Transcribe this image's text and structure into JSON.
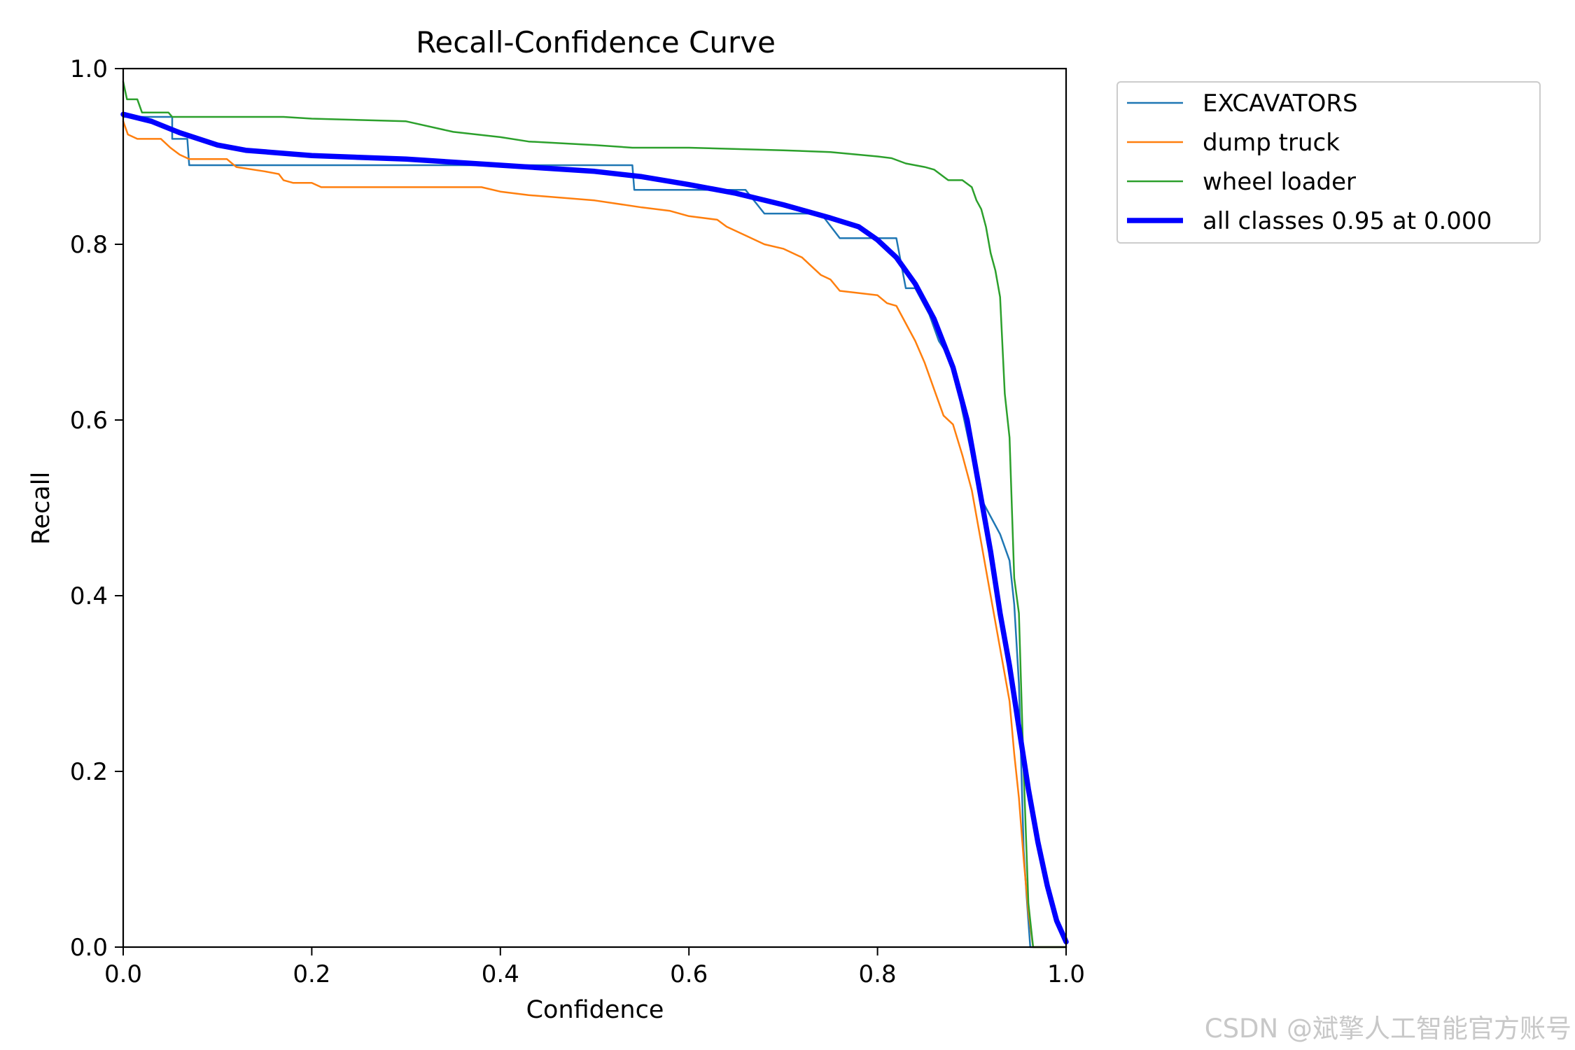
{
  "chart_data": {
    "type": "line",
    "title": "Recall-Confidence Curve",
    "xlabel": "Confidence",
    "ylabel": "Recall",
    "xlim": [
      0.0,
      1.0
    ],
    "ylim": [
      0.0,
      1.0
    ],
    "x_ticks": [
      "0.0",
      "0.2",
      "0.4",
      "0.6",
      "0.8",
      "1.0"
    ],
    "y_ticks": [
      "0.0",
      "0.2",
      "0.4",
      "0.6",
      "0.8",
      "1.0"
    ],
    "grid": false,
    "legend_position": "outside-right-top",
    "series": [
      {
        "name": "EXCAVATORS",
        "color": "#1f77b4",
        "width": "thin",
        "points": [
          [
            0.0,
            0.945
          ],
          [
            0.052,
            0.945
          ],
          [
            0.052,
            0.92
          ],
          [
            0.068,
            0.92
          ],
          [
            0.07,
            0.89
          ],
          [
            0.12,
            0.89
          ],
          [
            0.2,
            0.89
          ],
          [
            0.3,
            0.89
          ],
          [
            0.4,
            0.89
          ],
          [
            0.54,
            0.89
          ],
          [
            0.542,
            0.862
          ],
          [
            0.6,
            0.862
          ],
          [
            0.66,
            0.862
          ],
          [
            0.68,
            0.835
          ],
          [
            0.74,
            0.835
          ],
          [
            0.76,
            0.807
          ],
          [
            0.81,
            0.807
          ],
          [
            0.82,
            0.807
          ],
          [
            0.83,
            0.75
          ],
          [
            0.84,
            0.75
          ],
          [
            0.855,
            0.72
          ],
          [
            0.865,
            0.69
          ],
          [
            0.88,
            0.665
          ],
          [
            0.89,
            0.61
          ],
          [
            0.9,
            0.56
          ],
          [
            0.91,
            0.51
          ],
          [
            0.93,
            0.47
          ],
          [
            0.94,
            0.44
          ],
          [
            0.945,
            0.39
          ],
          [
            0.95,
            0.3
          ],
          [
            0.955,
            0.11
          ],
          [
            0.958,
            0.06
          ],
          [
            0.962,
            0.0
          ],
          [
            1.0,
            0.0
          ]
        ]
      },
      {
        "name": "dump truck",
        "color": "#ff7f0e",
        "width": "thin",
        "points": [
          [
            0.0,
            0.94
          ],
          [
            0.005,
            0.925
          ],
          [
            0.015,
            0.92
          ],
          [
            0.04,
            0.92
          ],
          [
            0.05,
            0.91
          ],
          [
            0.06,
            0.902
          ],
          [
            0.07,
            0.897
          ],
          [
            0.11,
            0.897
          ],
          [
            0.12,
            0.888
          ],
          [
            0.15,
            0.883
          ],
          [
            0.165,
            0.88
          ],
          [
            0.17,
            0.873
          ],
          [
            0.18,
            0.87
          ],
          [
            0.2,
            0.87
          ],
          [
            0.21,
            0.865
          ],
          [
            0.3,
            0.865
          ],
          [
            0.38,
            0.865
          ],
          [
            0.4,
            0.86
          ],
          [
            0.43,
            0.856
          ],
          [
            0.5,
            0.85
          ],
          [
            0.55,
            0.842
          ],
          [
            0.58,
            0.838
          ],
          [
            0.6,
            0.832
          ],
          [
            0.63,
            0.828
          ],
          [
            0.64,
            0.82
          ],
          [
            0.66,
            0.81
          ],
          [
            0.68,
            0.8
          ],
          [
            0.7,
            0.795
          ],
          [
            0.72,
            0.785
          ],
          [
            0.73,
            0.775
          ],
          [
            0.74,
            0.765
          ],
          [
            0.75,
            0.76
          ],
          [
            0.76,
            0.747
          ],
          [
            0.8,
            0.742
          ],
          [
            0.81,
            0.733
          ],
          [
            0.82,
            0.73
          ],
          [
            0.83,
            0.71
          ],
          [
            0.84,
            0.69
          ],
          [
            0.85,
            0.665
          ],
          [
            0.86,
            0.635
          ],
          [
            0.87,
            0.605
          ],
          [
            0.88,
            0.595
          ],
          [
            0.89,
            0.56
          ],
          [
            0.9,
            0.52
          ],
          [
            0.91,
            0.46
          ],
          [
            0.92,
            0.4
          ],
          [
            0.93,
            0.34
          ],
          [
            0.94,
            0.28
          ],
          [
            0.945,
            0.22
          ],
          [
            0.95,
            0.17
          ],
          [
            0.955,
            0.1
          ],
          [
            0.96,
            0.04
          ],
          [
            0.965,
            0.0
          ],
          [
            1.0,
            0.0
          ]
        ]
      },
      {
        "name": "wheel loader",
        "color": "#2ca02c",
        "width": "thin",
        "points": [
          [
            0.0,
            0.985
          ],
          [
            0.004,
            0.965
          ],
          [
            0.015,
            0.965
          ],
          [
            0.02,
            0.95
          ],
          [
            0.048,
            0.95
          ],
          [
            0.052,
            0.945
          ],
          [
            0.1,
            0.945
          ],
          [
            0.17,
            0.945
          ],
          [
            0.2,
            0.943
          ],
          [
            0.3,
            0.94
          ],
          [
            0.35,
            0.928
          ],
          [
            0.4,
            0.922
          ],
          [
            0.43,
            0.917
          ],
          [
            0.5,
            0.913
          ],
          [
            0.54,
            0.91
          ],
          [
            0.6,
            0.91
          ],
          [
            0.7,
            0.907
          ],
          [
            0.75,
            0.905
          ],
          [
            0.8,
            0.9
          ],
          [
            0.815,
            0.898
          ],
          [
            0.83,
            0.892
          ],
          [
            0.85,
            0.888
          ],
          [
            0.86,
            0.885
          ],
          [
            0.87,
            0.877
          ],
          [
            0.875,
            0.873
          ],
          [
            0.89,
            0.873
          ],
          [
            0.9,
            0.865
          ],
          [
            0.905,
            0.85
          ],
          [
            0.91,
            0.84
          ],
          [
            0.915,
            0.82
          ],
          [
            0.92,
            0.79
          ],
          [
            0.925,
            0.77
          ],
          [
            0.93,
            0.74
          ],
          [
            0.935,
            0.63
          ],
          [
            0.94,
            0.58
          ],
          [
            0.945,
            0.42
          ],
          [
            0.95,
            0.38
          ],
          [
            0.955,
            0.2
          ],
          [
            0.96,
            0.05
          ],
          [
            0.965,
            0.0
          ],
          [
            1.0,
            0.0
          ]
        ]
      },
      {
        "name": "all classes 0.95 at 0.000",
        "color": "#0000ff",
        "width": "thick",
        "points": [
          [
            0.0,
            0.948
          ],
          [
            0.03,
            0.94
          ],
          [
            0.06,
            0.927
          ],
          [
            0.1,
            0.913
          ],
          [
            0.13,
            0.907
          ],
          [
            0.2,
            0.901
          ],
          [
            0.3,
            0.897
          ],
          [
            0.4,
            0.89
          ],
          [
            0.5,
            0.883
          ],
          [
            0.55,
            0.877
          ],
          [
            0.6,
            0.868
          ],
          [
            0.65,
            0.858
          ],
          [
            0.7,
            0.845
          ],
          [
            0.75,
            0.83
          ],
          [
            0.78,
            0.82
          ],
          [
            0.8,
            0.805
          ],
          [
            0.82,
            0.785
          ],
          [
            0.84,
            0.755
          ],
          [
            0.86,
            0.715
          ],
          [
            0.88,
            0.66
          ],
          [
            0.895,
            0.6
          ],
          [
            0.91,
            0.51
          ],
          [
            0.92,
            0.45
          ],
          [
            0.93,
            0.38
          ],
          [
            0.94,
            0.32
          ],
          [
            0.95,
            0.25
          ],
          [
            0.96,
            0.18
          ],
          [
            0.97,
            0.12
          ],
          [
            0.98,
            0.07
          ],
          [
            0.99,
            0.03
          ],
          [
            1.0,
            0.006
          ]
        ]
      }
    ]
  },
  "watermark": "CSDN @斌擎人工智能官方账号"
}
